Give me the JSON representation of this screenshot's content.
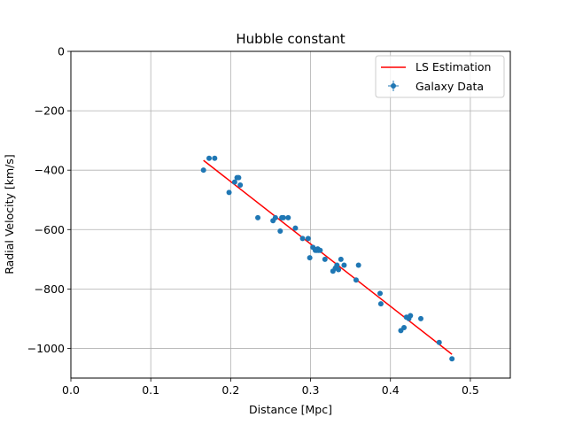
{
  "chart_data": {
    "type": "scatter",
    "title": "Hubble constant",
    "xlabel": "Distance [Mpc]",
    "ylabel": "Radial Velocity [km/s]",
    "xlim": [
      0.0,
      0.55
    ],
    "ylim": [
      -1100,
      0
    ],
    "xticks": [
      0.0,
      0.1,
      0.2,
      0.3,
      0.4,
      0.5
    ],
    "xtick_labels": [
      "0.0",
      "0.1",
      "0.2",
      "0.3",
      "0.4",
      "0.5"
    ],
    "yticks": [
      0,
      -200,
      -400,
      -600,
      -800,
      -1000
    ],
    "ytick_labels": [
      "0",
      "−200",
      "−400",
      "−600",
      "−800",
      "−1000"
    ],
    "grid": true,
    "legend_position": "top-right",
    "colors": {
      "data": "#1f77b4",
      "fit": "#ff0000",
      "grid": "#b0b0b0"
    },
    "series": [
      {
        "name": "Galaxy Data",
        "kind": "scatter_with_errorbars",
        "x": [
          0.166,
          0.173,
          0.18,
          0.198,
          0.205,
          0.208,
          0.21,
          0.212,
          0.234,
          0.253,
          0.256,
          0.262,
          0.264,
          0.266,
          0.272,
          0.281,
          0.29,
          0.297,
          0.299,
          0.303,
          0.306,
          0.308,
          0.309,
          0.31,
          0.312,
          0.318,
          0.328,
          0.331,
          0.333,
          0.335,
          0.338,
          0.342,
          0.357,
          0.36,
          0.387,
          0.388,
          0.413,
          0.417,
          0.42,
          0.423,
          0.425,
          0.438,
          0.461,
          0.477
        ],
        "y": [
          -400,
          -360,
          -360,
          -475,
          -440,
          -425,
          -425,
          -450,
          -560,
          -570,
          -560,
          -605,
          -560,
          -560,
          -560,
          -595,
          -630,
          -630,
          -695,
          -660,
          -670,
          -670,
          -665,
          -670,
          -670,
          -700,
          -740,
          -730,
          -720,
          -735,
          -700,
          -720,
          -770,
          -720,
          -815,
          -850,
          -940,
          -930,
          -895,
          -900,
          -890,
          -900,
          -980,
          -1035
        ]
      },
      {
        "name": "LS Estimation",
        "kind": "line",
        "x": [
          0.166,
          0.477
        ],
        "y": [
          -367,
          -1020
        ]
      }
    ]
  }
}
